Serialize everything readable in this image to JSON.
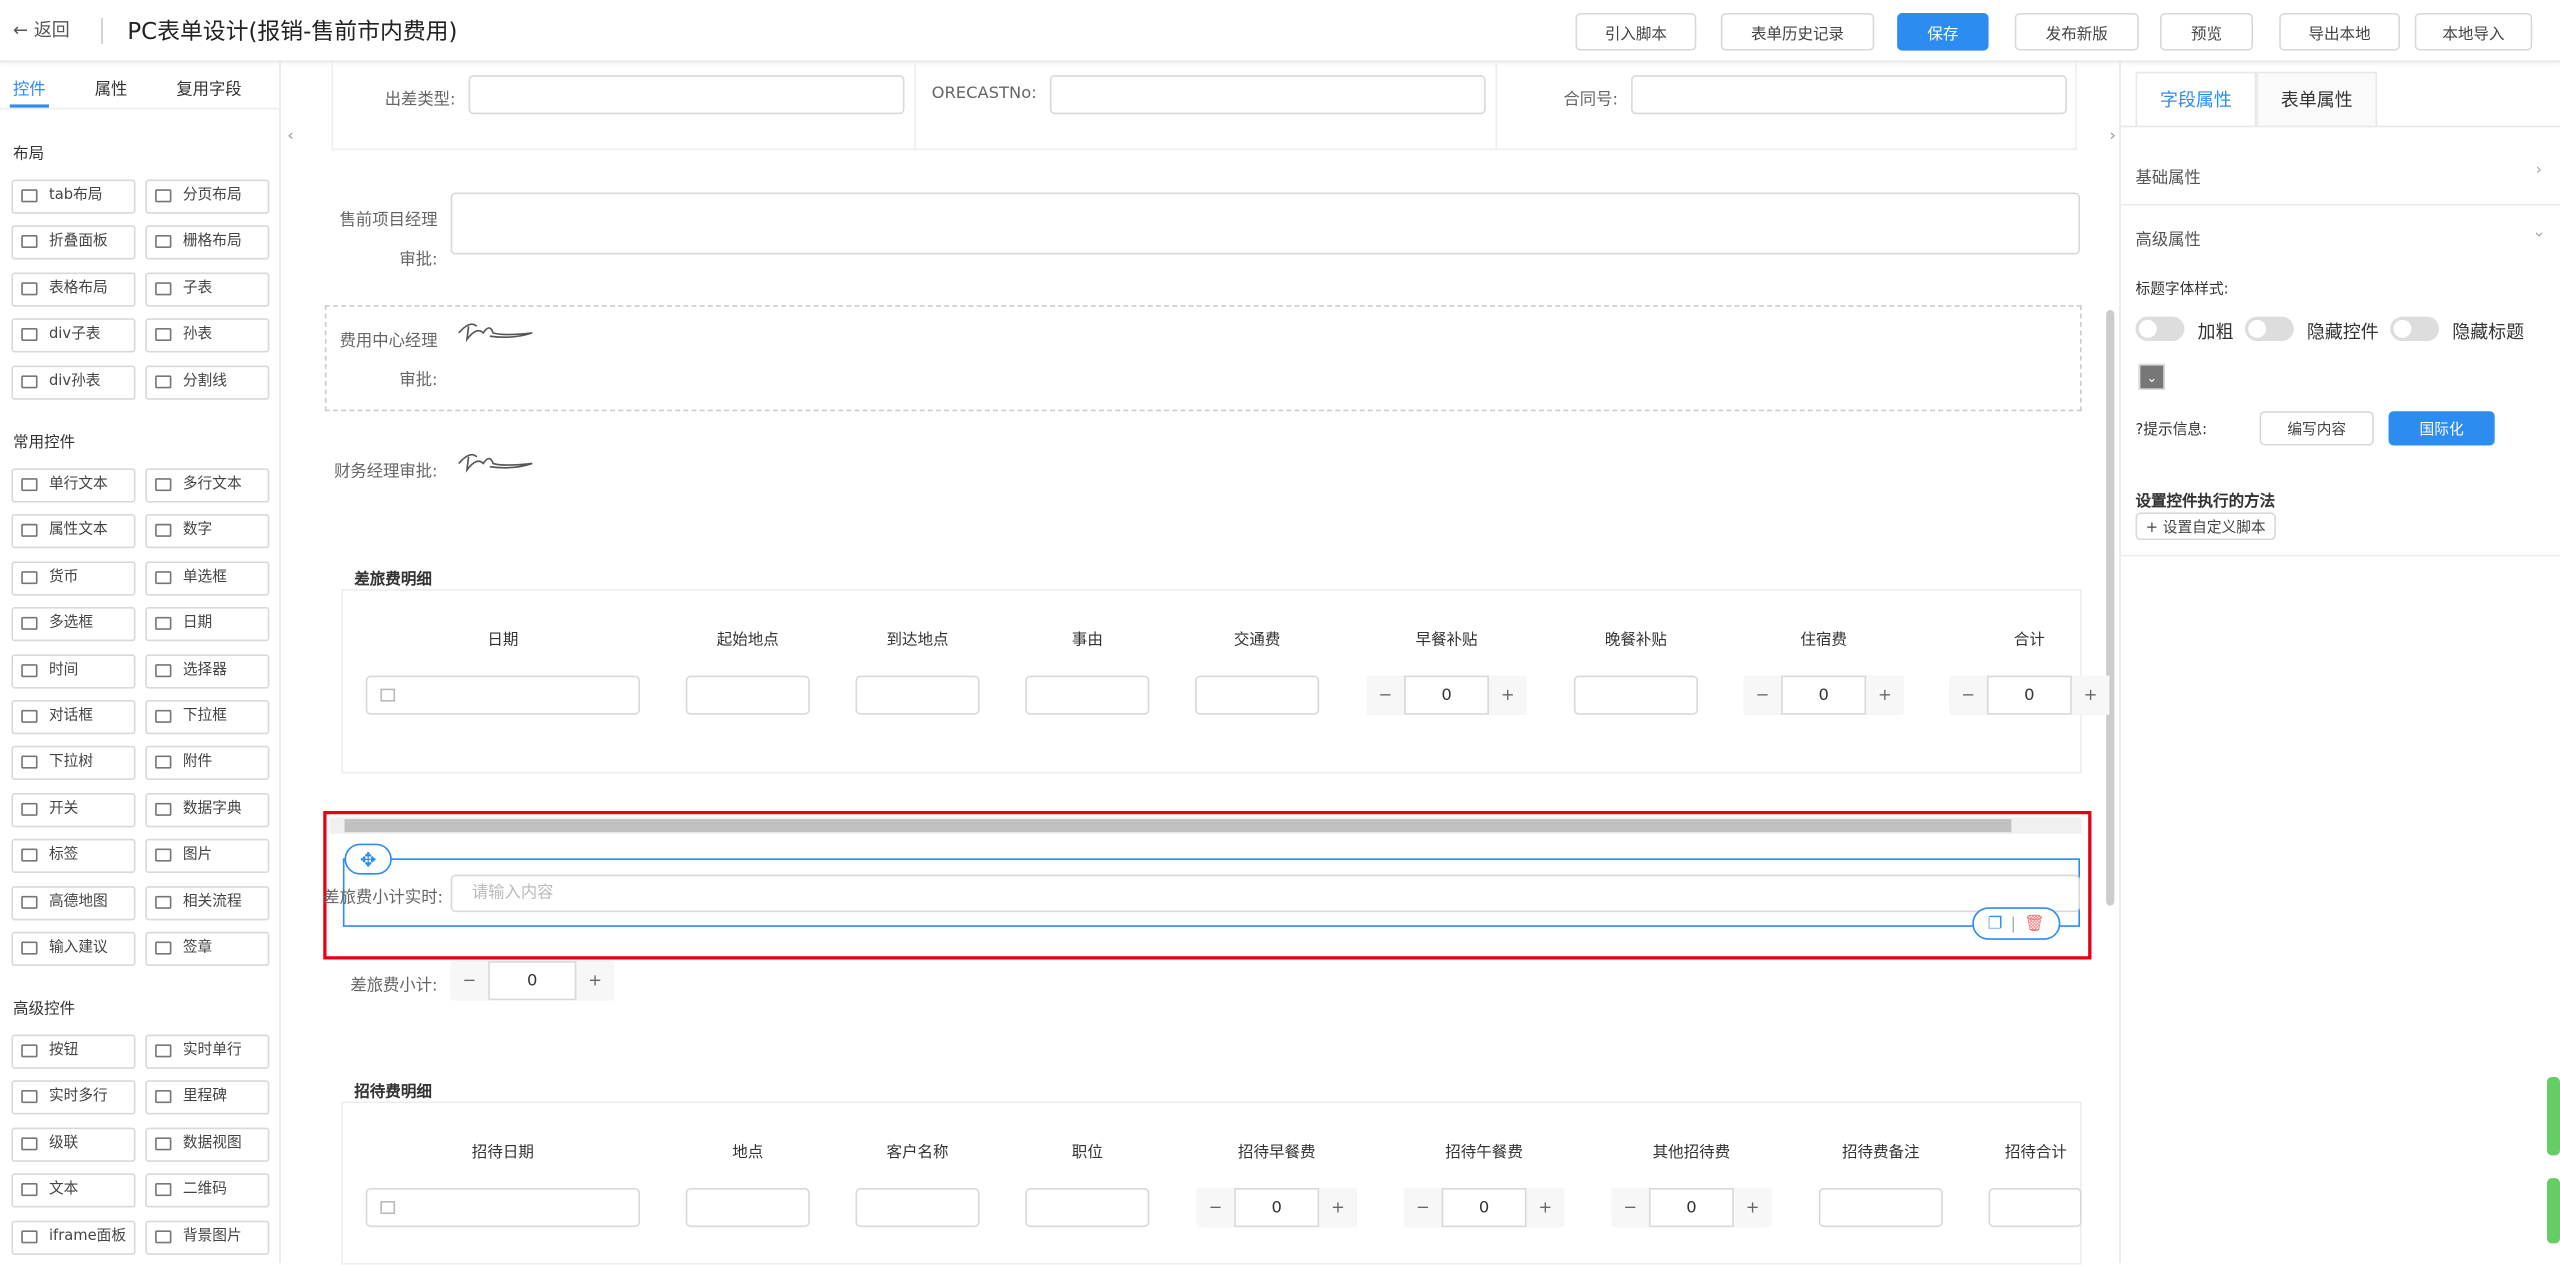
{
  "header": {
    "back": "返回",
    "title": "PC表单设计(报销-售前市内费用)",
    "buttons": [
      "引入脚本",
      "表单历史记录",
      "保存",
      "发布新版",
      "预览",
      "导出本地",
      "本地导入"
    ]
  },
  "left_panel": {
    "tabs": [
      "控件",
      "属性",
      "复用字段"
    ],
    "sections": [
      {
        "title": "布局",
        "items": [
          "tab布局",
          "分页布局",
          "折叠面板",
          "栅格布局",
          "表格布局",
          "子表",
          "div子表",
          "孙表",
          "div孙表",
          "分割线"
        ]
      },
      {
        "title": "常用控件",
        "items": [
          "单行文本",
          "多行文本",
          "属性文本",
          "数字",
          "货币",
          "单选框",
          "多选框",
          "日期",
          "时间",
          "选择器",
          "对话框",
          "下拉框",
          "下拉树",
          "附件",
          "开关",
          "数据字典",
          "标签",
          "图片",
          "高德地图",
          "相关流程",
          "输入建议",
          "签章"
        ]
      },
      {
        "title": "高级控件",
        "items": [
          "按钮",
          "实时单行",
          "实时多行",
          "里程碑",
          "级联",
          "数据视图",
          "文本",
          "二维码",
          "iframe面板",
          "背景图片"
        ]
      }
    ]
  },
  "form": {
    "top_fields": [
      "出差类型:",
      "ORECASTNo:",
      "合同号:"
    ],
    "approvals": [
      "售前项目经理审批:",
      "费用中心经理审批:",
      "财务经理审批:"
    ],
    "travel_table": {
      "title": "差旅费明细",
      "columns": [
        "日期",
        "起始地点",
        "到达地点",
        "事由",
        "交通费",
        "早餐补贴",
        "晚餐补贴",
        "住宿费",
        "合计"
      ],
      "rows": [
        [
          null,
          null,
          null,
          null,
          null,
          0,
          null,
          0,
          0
        ]
      ]
    },
    "selected_field": {
      "label": "差旅费小计实时:",
      "placeholder": "请输入内容"
    },
    "subtotal": {
      "label": "差旅费小计:",
      "value": 0
    },
    "hospitality_table": {
      "title": "招待费明细",
      "columns": [
        "招待日期",
        "地点",
        "客户名称",
        "职位",
        "招待早餐费",
        "招待午餐费",
        "其他招待费",
        "招待费备注",
        "招待合计"
      ],
      "rows": [
        [
          null,
          null,
          null,
          null,
          0,
          0,
          0,
          null,
          null
        ]
      ]
    }
  },
  "right_panel": {
    "tabs": [
      "字段属性",
      "表单属性"
    ],
    "basic": "基础属性",
    "advanced": "高级属性",
    "font_style": "标题字体样式:",
    "toggles": [
      "加粗",
      "隐藏控件",
      "隐藏标题"
    ],
    "hint": "提示信息:",
    "hint_buttons": [
      "编写内容",
      "国际化"
    ],
    "method_title": "设置控件执行的方法",
    "method_button": "设置自定义脚本"
  }
}
